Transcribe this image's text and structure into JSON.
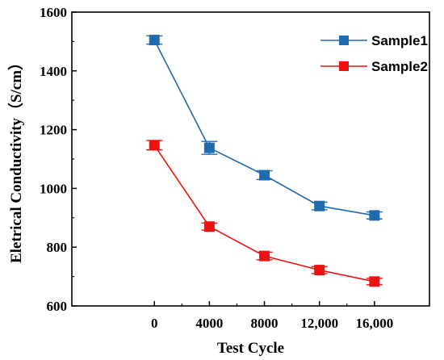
{
  "chart_data": {
    "type": "line",
    "title": "",
    "xlabel": "Test Cycle",
    "ylabel": "Eletrical Conductivity（S/cm）",
    "x": [
      0,
      4000,
      8000,
      12000,
      16000
    ],
    "x_tick_labels": [
      "0",
      "4000",
      "8000",
      "12,000",
      "16,000"
    ],
    "y_ticks": [
      600,
      800,
      1000,
      1200,
      1400,
      1600
    ],
    "y_tick_labels": [
      "600",
      "800",
      "1000",
      "1200",
      "1400",
      "1600"
    ],
    "xlim": [
      -6000,
      20000
    ],
    "ylim": [
      600,
      1600
    ],
    "grid": false,
    "legend_position": "top-right",
    "series": [
      {
        "name": "Sample1",
        "color": "#1f6bb0",
        "values": [
          1505,
          1138,
          1045,
          940,
          908
        ],
        "errors": [
          14,
          22,
          15,
          13,
          12
        ]
      },
      {
        "name": "Sample2",
        "color": "#ee1111",
        "values": [
          1147,
          870,
          770,
          722,
          683
        ],
        "errors": [
          16,
          12,
          13,
          12,
          11
        ]
      }
    ]
  }
}
